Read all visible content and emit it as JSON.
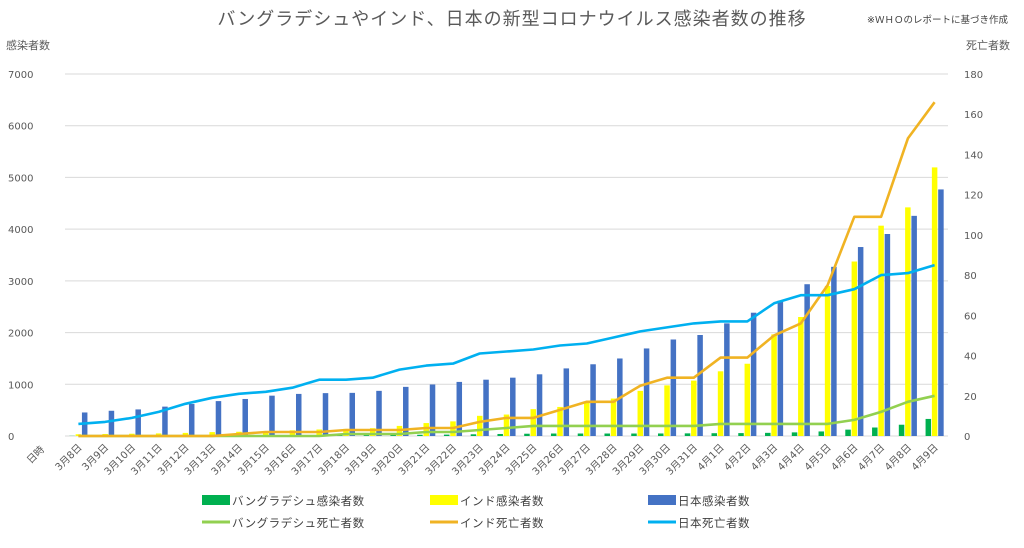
{
  "chart_data": {
    "type": "bar",
    "title": "バングラデシュやインド、日本の新型コロナウイルス感染者数の推移",
    "note": "※ＷＨＯのレポートに基づき作成",
    "ylabel_left": "感染者数",
    "ylabel_right": "死亡者数",
    "xlabel": "日時",
    "ylim_left": [
      0,
      7000
    ],
    "yticks_left": [
      0,
      1000,
      2000,
      3000,
      4000,
      5000,
      6000,
      7000
    ],
    "ylim_right": [
      0,
      180
    ],
    "yticks_right": [
      0,
      20,
      40,
      60,
      80,
      100,
      120,
      140,
      160,
      180
    ],
    "grid": true,
    "legend_position": "bottom",
    "categories": [
      "3月8日",
      "3月9日",
      "3月10日",
      "3月11日",
      "3月12日",
      "3月13日",
      "3月14日",
      "3月15日",
      "3月16日",
      "3月17日",
      "3月18日",
      "3月19日",
      "3月20日",
      "3月21日",
      "3月22日",
      "3月23日",
      "3月24日",
      "3月25日",
      "3月26日",
      "3月27日",
      "3月28日",
      "3月29日",
      "3月30日",
      "3月31日",
      "4月1日",
      "4月2日",
      "4月3日",
      "4月4日",
      "4月5日",
      "4月6日",
      "4月7日",
      "4月8日",
      "4月9日"
    ],
    "bar_series": [
      {
        "name": "バングラデシュ感染者数",
        "color": "#00b050",
        "values": [
          3,
          3,
          3,
          3,
          3,
          3,
          3,
          3,
          5,
          8,
          10,
          17,
          20,
          24,
          27,
          33,
          39,
          44,
          48,
          48,
          48,
          48,
          49,
          51,
          54,
          56,
          61,
          70,
          88,
          123,
          164,
          218,
          330
        ]
      },
      {
        "name": "インド感染者数",
        "color": "#ffff00",
        "values": [
          34,
          39,
          44,
          50,
          60,
          75,
          82,
          93,
          110,
          126,
          137,
          151,
          195,
          250,
          283,
          390,
          415,
          519,
          562,
          649,
          724,
          873,
          979,
          1071,
          1251,
          1397,
          1965,
          2301,
          2902,
          3374,
          4067,
          4421,
          5194
        ]
      },
      {
        "name": "日本感染者数",
        "color": "#4472c4",
        "values": [
          455,
          488,
          514,
          568,
          619,
          675,
          716,
          780,
          814,
          829,
          834,
          873,
          950,
          996,
          1046,
          1089,
          1128,
          1193,
          1307,
          1387,
          1499,
          1693,
          1866,
          1953,
          2178,
          2384,
          2617,
          2935,
          3271,
          3654,
          3906,
          4257,
          4768
        ]
      }
    ],
    "line_series": [
      {
        "name": "バングラデシュ死亡者数",
        "color": "#92d050",
        "values": [
          0,
          0,
          0,
          0,
          0,
          0,
          0,
          0,
          0,
          0,
          1,
          1,
          1,
          2,
          2,
          3,
          4,
          5,
          5,
          5,
          5,
          5,
          5,
          5,
          6,
          6,
          6,
          6,
          6,
          8,
          12,
          17,
          20
        ]
      },
      {
        "name": "インド死亡者数",
        "color": "#f0b323",
        "values": [
          0,
          0,
          0,
          0,
          0,
          0,
          1,
          2,
          2,
          2,
          3,
          3,
          3,
          4,
          4,
          7,
          9,
          9,
          13,
          17,
          17,
          25,
          29,
          29,
          39,
          39,
          50,
          56,
          75,
          109,
          109,
          148,
          166
        ]
      },
      {
        "name": "日本死亡者数",
        "color": "#00b0f0",
        "values": [
          6,
          7,
          9,
          12,
          16,
          19,
          21,
          22,
          24,
          28,
          28,
          29,
          33,
          35,
          36,
          41,
          42,
          43,
          45,
          46,
          49,
          52,
          54,
          56,
          57,
          57,
          66,
          70,
          70,
          73,
          80,
          81,
          85
        ]
      }
    ]
  }
}
